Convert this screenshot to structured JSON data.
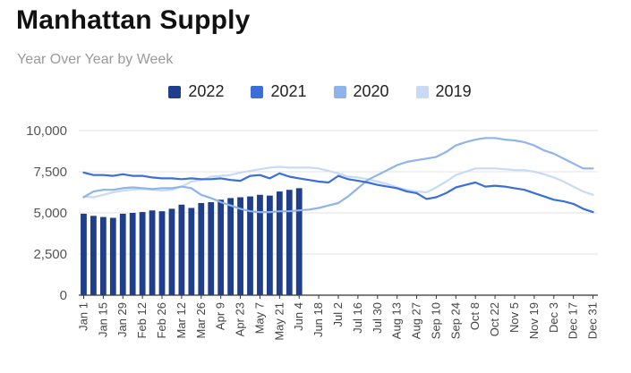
{
  "chart_data": {
    "type": "bar",
    "title": "Manhattan Supply",
    "subtitle": "Year Over Year by Week",
    "xlabel": "",
    "ylabel": "",
    "ylim": [
      0,
      10000
    ],
    "yticks": [
      "0",
      "2,500",
      "5,000",
      "7,500",
      "10,000"
    ],
    "ytick_values": [
      0,
      2500,
      5000,
      7500,
      10000
    ],
    "grid": true,
    "legend_position": "top",
    "x_tick_labels": [
      "Jan 1",
      "Jan 15",
      "Jan 29",
      "Feb 12",
      "Feb 26",
      "Mar 12",
      "Mar 26",
      "Apr 9",
      "Apr 23",
      "May 7",
      "May 21",
      "Jun 4",
      "Jun 18",
      "Jul 2",
      "Jul 16",
      "Jul 30",
      "Aug 13",
      "Aug 27",
      "Sep 10",
      "Sep 24",
      "Oct 8",
      "Oct 22",
      "Nov 5",
      "Nov 19",
      "Dec 3",
      "Dec 17",
      "Dec 31"
    ],
    "weeks": 53,
    "series": [
      {
        "name": "2022",
        "kind": "bar",
        "color": "#1f3f8c",
        "values": [
          4950,
          4820,
          4750,
          4700,
          4950,
          5000,
          5050,
          5150,
          5100,
          5250,
          5500,
          5300,
          5600,
          5650,
          5800,
          5900,
          5950,
          6000,
          6100,
          6050,
          6300,
          6400,
          6500
        ]
      },
      {
        "name": "2021",
        "kind": "line",
        "color": "#3a6fd8",
        "values": [
          7450,
          7300,
          7300,
          7250,
          7350,
          7250,
          7250,
          7150,
          7100,
          7100,
          7050,
          7100,
          7050,
          7050,
          7100,
          7000,
          6950,
          7250,
          7300,
          7100,
          7400,
          7200,
          7100,
          7000,
          6900,
          6850,
          7250,
          7050,
          6950,
          6850,
          6700,
          6600,
          6500,
          6300,
          6200,
          5850,
          5950,
          6200,
          6550,
          6700,
          6850,
          6600,
          6650,
          6600,
          6500,
          6400,
          6200,
          6000,
          5800,
          5700,
          5550,
          5250,
          5050
        ]
      },
      {
        "name": "2020",
        "kind": "line",
        "color": "#8fb3ec",
        "values": [
          5950,
          6300,
          6400,
          6400,
          6500,
          6550,
          6500,
          6450,
          6500,
          6500,
          6600,
          6500,
          6100,
          5900,
          5650,
          5450,
          5250,
          5100,
          5050,
          5050,
          5100,
          5100,
          5150,
          5200,
          5300,
          5450,
          5600,
          6000,
          6500,
          7000,
          7300,
          7600,
          7900,
          8100,
          8200,
          8300,
          8400,
          8700,
          9100,
          9300,
          9450,
          9550,
          9550,
          9450,
          9400,
          9300,
          9100,
          8800,
          8600,
          8300,
          8000,
          7700,
          7700
        ]
      },
      {
        "name": "2019",
        "kind": "line",
        "color": "#c8daf6",
        "values": [
          6000,
          5950,
          6100,
          6250,
          6350,
          6400,
          6450,
          6400,
          6350,
          6400,
          6600,
          6900,
          7000,
          7200,
          7250,
          7300,
          7450,
          7550,
          7650,
          7750,
          7800,
          7750,
          7750,
          7750,
          7700,
          7550,
          7400,
          7200,
          7150,
          7050,
          6900,
          6750,
          6550,
          6400,
          6300,
          6250,
          6550,
          6900,
          7300,
          7500,
          7700,
          7700,
          7700,
          7650,
          7600,
          7600,
          7500,
          7350,
          7150,
          6900,
          6600,
          6300,
          6100
        ]
      }
    ]
  }
}
